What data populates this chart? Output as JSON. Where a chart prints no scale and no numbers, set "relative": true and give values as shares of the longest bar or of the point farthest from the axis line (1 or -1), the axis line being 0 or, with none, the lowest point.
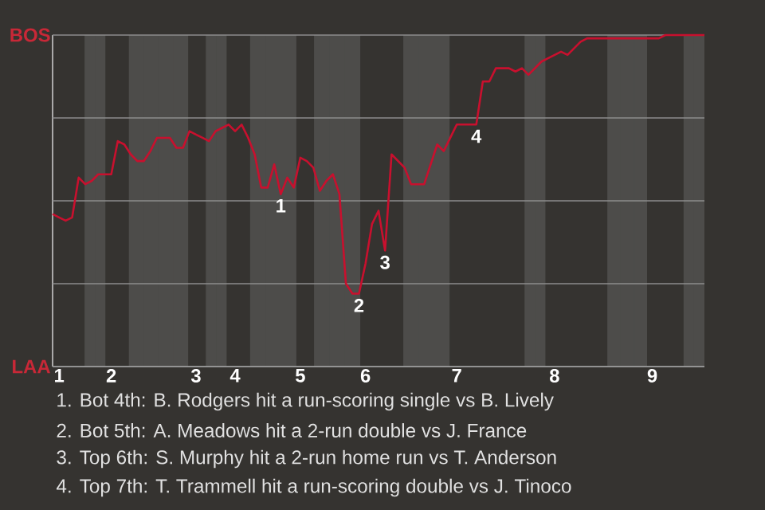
{
  "chart_data": {
    "type": "line",
    "categories": [
      null,
      "1",
      null,
      null,
      null,
      null,
      null,
      null,
      null,
      "2",
      null,
      null,
      null,
      null,
      null,
      null,
      null,
      null,
      null,
      null,
      null,
      null,
      "3",
      null,
      null,
      null,
      null,
      null,
      "4",
      null,
      null,
      null,
      null,
      null,
      null,
      null,
      null,
      null,
      "5",
      null,
      null,
      null,
      null,
      null,
      null,
      null,
      null,
      null,
      "6",
      null,
      null,
      null,
      null,
      null,
      null,
      null,
      null,
      null,
      null,
      null,
      null,
      null,
      "7",
      null,
      null,
      null,
      null,
      null,
      null,
      null,
      null,
      null,
      null,
      null,
      null,
      null,
      null,
      "8",
      null,
      null,
      null,
      null,
      null,
      null,
      null,
      null,
      null,
      null,
      null,
      null,
      null,
      null,
      "9",
      null,
      null,
      null,
      null,
      null,
      null,
      null,
      null
    ],
    "series": [
      {
        "color": "#c8102e",
        "values": [
          0.46,
          0.45,
          0.44,
          0.45,
          0.57,
          0.55,
          0.56,
          0.58,
          0.58,
          0.58,
          0.68,
          0.67,
          0.64,
          0.62,
          0.62,
          0.65,
          0.69,
          0.69,
          0.69,
          0.66,
          0.66,
          0.71,
          0.7,
          0.69,
          0.68,
          0.71,
          0.72,
          0.73,
          0.71,
          0.73,
          0.69,
          0.64,
          0.54,
          0.54,
          0.61,
          0.52,
          0.57,
          0.54,
          0.63,
          0.62,
          0.6,
          0.53,
          0.56,
          0.58,
          0.52,
          0.25,
          0.22,
          0.22,
          0.31,
          0.43,
          0.47,
          0.35,
          0.64,
          0.62,
          0.6,
          0.55,
          0.55,
          0.55,
          0.61,
          0.67,
          0.65,
          0.69,
          0.73,
          0.73,
          0.73,
          0.73,
          0.86,
          0.86,
          0.9,
          0.9,
          0.9,
          0.89,
          0.9,
          0.88,
          0.9,
          0.92,
          0.93,
          0.94,
          0.95,
          0.94,
          0.96,
          0.98,
          0.99,
          0.99,
          0.99,
          0.99,
          0.99,
          0.99,
          0.99,
          0.99,
          0.99,
          0.99,
          0.99,
          0.99,
          1,
          1,
          1,
          1,
          1,
          1,
          1
        ]
      }
    ],
    "relative": true,
    "grid": "y",
    "annotations": [
      "BOS",
      "LAA",
      {
        "text": "1",
        "y": 0.52
      },
      {
        "text": "2",
        "y": 0.22
      },
      {
        "text": "3",
        "y": 0.35
      },
      {
        "text": "4",
        "y": 0.73
      },
      "1. Bot 4th: B. Rodgers hit a run-scoring single vs B. Lively",
      "2. Bot 5th: A. Meadows hit a 2-run double vs J. France",
      "3. Top 6th: S. Murphy hit a 2-run home run vs T. Anderson",
      "4. Top 7th: T. Trammell hit a run-scoring double vs J. Tinoco"
    ]
  }
}
